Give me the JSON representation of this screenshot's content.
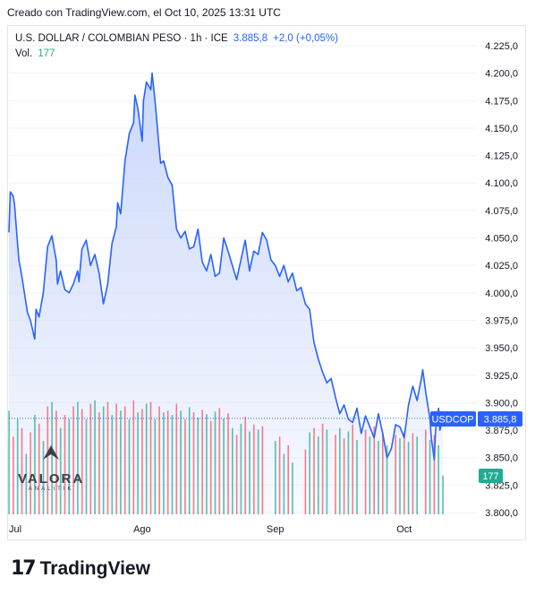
{
  "caption": "Creado con TradingView.com, el Oct 10, 2025 13:31 UTC",
  "legend": {
    "symbol": "U.S. DOLLAR / COLOMBIAN PESO · 1h · ICE",
    "price": "3.885,8",
    "change": "+2,0 (+0,05%)",
    "volume_label": "Vol.",
    "volume_value": "177"
  },
  "price_tag": {
    "symbol": "USDCOP",
    "value": "3.885,8"
  },
  "volume_tag": "177",
  "watermark": {
    "name": "VALORA",
    "sub": "ANALITIK"
  },
  "footer": {
    "logo": "17",
    "brand": "TradingView"
  },
  "colors": {
    "line": "#2962ff",
    "fill": "#c9d6fb",
    "vol_up": "#22ab94",
    "vol_down": "#f7525f",
    "tag": "#2962ff"
  },
  "chart_data": {
    "type": "area",
    "y_ticks": [
      "4.225,0",
      "4.200,0",
      "4.175,0",
      "4.150,0",
      "4.125,0",
      "4.100,0",
      "4.075,0",
      "4.050,0",
      "4.025,0",
      "4.000,0",
      "3.975,0",
      "3.950,0",
      "3.925,0",
      "3.900,0",
      "3.875,0",
      "3.850,0",
      "3.825,0",
      "3.800,0"
    ],
    "y_tick_values": [
      4225,
      4200,
      4175,
      4150,
      4125,
      4100,
      4075,
      4050,
      4025,
      4000,
      3975,
      3950,
      3925,
      3900,
      3875,
      3850,
      3825,
      3800
    ],
    "ylim": [
      3800,
      4235
    ],
    "x_ticks": [
      "Jul",
      "Ago",
      "Sep",
      "Oct"
    ],
    "x_tick_dates": [
      "2025-07-01",
      "2025-08-01",
      "2025-09-01",
      "2025-10-01"
    ],
    "xlim": [
      "2025-07-01",
      "2025-10-10"
    ],
    "last_price": 3885.8,
    "points": [
      [
        "2025-07-01",
        4055
      ],
      [
        "2025-07-01",
        4092
      ],
      [
        "2025-07-02",
        4088
      ],
      [
        "2025-07-02",
        4080
      ],
      [
        "2025-07-03",
        4045
      ],
      [
        "2025-07-03",
        4030
      ],
      [
        "2025-07-04",
        4015
      ],
      [
        "2025-07-05",
        3990
      ],
      [
        "2025-07-05",
        3982
      ],
      [
        "2025-07-06",
        3975
      ],
      [
        "2025-07-07",
        3958
      ],
      [
        "2025-07-07",
        3985
      ],
      [
        "2025-07-08",
        3978
      ],
      [
        "2025-07-09",
        4000
      ],
      [
        "2025-07-10",
        4042
      ],
      [
        "2025-07-11",
        4052
      ],
      [
        "2025-07-12",
        4030
      ],
      [
        "2025-07-12",
        4008
      ],
      [
        "2025-07-13",
        4020
      ],
      [
        "2025-07-14",
        4003
      ],
      [
        "2025-07-15",
        4000
      ],
      [
        "2025-07-16",
        4008
      ],
      [
        "2025-07-17",
        4020
      ],
      [
        "2025-07-17",
        4010
      ],
      [
        "2025-07-18",
        4040
      ],
      [
        "2025-07-19",
        4048
      ],
      [
        "2025-07-20",
        4025
      ],
      [
        "2025-07-21",
        4035
      ],
      [
        "2025-07-22",
        4018
      ],
      [
        "2025-07-23",
        3990
      ],
      [
        "2025-07-24",
        4008
      ],
      [
        "2025-07-25",
        4045
      ],
      [
        "2025-07-26",
        4060
      ],
      [
        "2025-07-26",
        4082
      ],
      [
        "2025-07-27",
        4072
      ],
      [
        "2025-07-28",
        4120
      ],
      [
        "2025-07-29",
        4145
      ],
      [
        "2025-07-30",
        4155
      ],
      [
        "2025-07-30",
        4180
      ],
      [
        "2025-07-31",
        4168
      ],
      [
        "2025-08-01",
        4138
      ],
      [
        "2025-08-01",
        4175
      ],
      [
        "2025-08-02",
        4192
      ],
      [
        "2025-08-03",
        4185
      ],
      [
        "2025-08-03",
        4200
      ],
      [
        "2025-08-04",
        4175
      ],
      [
        "2025-08-05",
        4130
      ],
      [
        "2025-08-05",
        4118
      ],
      [
        "2025-08-06",
        4120
      ],
      [
        "2025-08-07",
        4105
      ],
      [
        "2025-08-08",
        4098
      ],
      [
        "2025-08-09",
        4058
      ],
      [
        "2025-08-10",
        4050
      ],
      [
        "2025-08-11",
        4056
      ],
      [
        "2025-08-12",
        4040
      ],
      [
        "2025-08-13",
        4042
      ],
      [
        "2025-08-14",
        4058
      ],
      [
        "2025-08-15",
        4028
      ],
      [
        "2025-08-16",
        4020
      ],
      [
        "2025-08-17",
        4035
      ],
      [
        "2025-08-18",
        4015
      ],
      [
        "2025-08-19",
        4018
      ],
      [
        "2025-08-20",
        4050
      ],
      [
        "2025-08-21",
        4038
      ],
      [
        "2025-08-22",
        4025
      ],
      [
        "2025-08-23",
        4012
      ],
      [
        "2025-08-24",
        4030
      ],
      [
        "2025-08-25",
        4048
      ],
      [
        "2025-08-26",
        4020
      ],
      [
        "2025-08-27",
        4038
      ],
      [
        "2025-08-28",
        4035
      ],
      [
        "2025-08-29",
        4055
      ],
      [
        "2025-08-30",
        4048
      ],
      [
        "2025-08-31",
        4030
      ],
      [
        "2025-09-01",
        4025
      ],
      [
        "2025-09-02",
        4015
      ],
      [
        "2025-09-03",
        4025
      ],
      [
        "2025-09-04",
        4010
      ],
      [
        "2025-09-05",
        4018
      ],
      [
        "2025-09-06",
        4002
      ],
      [
        "2025-09-07",
        4005
      ],
      [
        "2025-09-08",
        3990
      ],
      [
        "2025-09-09",
        3985
      ],
      [
        "2025-09-10",
        3955
      ],
      [
        "2025-09-11",
        3940
      ],
      [
        "2025-09-12",
        3928
      ],
      [
        "2025-09-13",
        3918
      ],
      [
        "2025-09-14",
        3922
      ],
      [
        "2025-09-15",
        3905
      ],
      [
        "2025-09-16",
        3890
      ],
      [
        "2025-09-17",
        3898
      ],
      [
        "2025-09-18",
        3885
      ],
      [
        "2025-09-19",
        3882
      ],
      [
        "2025-09-20",
        3895
      ],
      [
        "2025-09-21",
        3872
      ],
      [
        "2025-09-22",
        3888
      ],
      [
        "2025-09-23",
        3878
      ],
      [
        "2025-09-24",
        3868
      ],
      [
        "2025-09-25",
        3890
      ],
      [
        "2025-09-26",
        3872
      ],
      [
        "2025-09-27",
        3850
      ],
      [
        "2025-09-28",
        3858
      ],
      [
        "2025-09-29",
        3880
      ],
      [
        "2025-09-30",
        3878
      ],
      [
        "2025-10-01",
        3868
      ],
      [
        "2025-10-02",
        3898
      ],
      [
        "2025-10-03",
        3915
      ],
      [
        "2025-10-04",
        3902
      ],
      [
        "2025-10-05",
        3922
      ],
      [
        "2025-10-05",
        3930
      ],
      [
        "2025-10-06",
        3910
      ],
      [
        "2025-10-07",
        3885
      ],
      [
        "2025-10-07",
        3868
      ],
      [
        "2025-10-08",
        3848
      ],
      [
        "2025-10-08",
        3875
      ],
      [
        "2025-10-09",
        3895
      ],
      [
        "2025-10-09",
        3875
      ],
      [
        "2025-10-10",
        3885.8
      ]
    ],
    "volume": [
      [
        "2025-07-01",
        120,
        1
      ],
      [
        "2025-07-02",
        90,
        0
      ],
      [
        "2025-07-03",
        110,
        1
      ],
      [
        "2025-07-04",
        100,
        0
      ],
      [
        "2025-07-05",
        70,
        1
      ],
      [
        "2025-07-06",
        95,
        0
      ],
      [
        "2025-07-07",
        115,
        1
      ],
      [
        "2025-07-08",
        105,
        0
      ],
      [
        "2025-07-09",
        85,
        1
      ],
      [
        "2025-07-10",
        125,
        0
      ],
      [
        "2025-07-11",
        130,
        1
      ],
      [
        "2025-07-12",
        120,
        0
      ],
      [
        "2025-07-13",
        100,
        1
      ],
      [
        "2025-07-14",
        115,
        0
      ],
      [
        "2025-07-15",
        110,
        1
      ],
      [
        "2025-07-16",
        125,
        0
      ],
      [
        "2025-07-17",
        130,
        1
      ],
      [
        "2025-07-18",
        122,
        0
      ],
      [
        "2025-07-19",
        110,
        1
      ],
      [
        "2025-07-20",
        128,
        0
      ],
      [
        "2025-07-21",
        132,
        1
      ],
      [
        "2025-07-22",
        118,
        0
      ],
      [
        "2025-07-23",
        125,
        1
      ],
      [
        "2025-07-24",
        130,
        0
      ],
      [
        "2025-07-25",
        115,
        1
      ],
      [
        "2025-07-26",
        128,
        0
      ],
      [
        "2025-07-27",
        120,
        1
      ],
      [
        "2025-07-28",
        125,
        0
      ],
      [
        "2025-07-29",
        110,
        1
      ],
      [
        "2025-07-30",
        132,
        0
      ],
      [
        "2025-07-31",
        118,
        1
      ],
      [
        "2025-08-01",
        122,
        0
      ],
      [
        "2025-08-02",
        128,
        1
      ],
      [
        "2025-08-03",
        130,
        0
      ],
      [
        "2025-08-04",
        110,
        1
      ],
      [
        "2025-08-05",
        125,
        0
      ],
      [
        "2025-08-06",
        118,
        1
      ],
      [
        "2025-08-07",
        120,
        0
      ],
      [
        "2025-08-08",
        115,
        1
      ],
      [
        "2025-08-09",
        128,
        0
      ],
      [
        "2025-08-10",
        120,
        1
      ],
      [
        "2025-08-11",
        110,
        0
      ],
      [
        "2025-08-12",
        124,
        1
      ],
      [
        "2025-08-13",
        118,
        0
      ],
      [
        "2025-08-14",
        112,
        1
      ],
      [
        "2025-08-15",
        121,
        0
      ],
      [
        "2025-08-16",
        116,
        1
      ],
      [
        "2025-08-17",
        108,
        0
      ],
      [
        "2025-08-18",
        119,
        1
      ],
      [
        "2025-08-19",
        123,
        0
      ],
      [
        "2025-08-20",
        111,
        1
      ],
      [
        "2025-08-21",
        117,
        0
      ],
      [
        "2025-08-22",
        100,
        1
      ],
      [
        "2025-08-23",
        92,
        0
      ],
      [
        "2025-08-24",
        105,
        1
      ],
      [
        "2025-08-25",
        113,
        0
      ],
      [
        "2025-08-26",
        96,
        1
      ],
      [
        "2025-08-27",
        104,
        0
      ],
      [
        "2025-08-28",
        98,
        1
      ],
      [
        "2025-08-29",
        102,
        0
      ],
      [
        "2025-09-01",
        85,
        1
      ],
      [
        "2025-09-02",
        90,
        0
      ],
      [
        "2025-09-03",
        70,
        1
      ],
      [
        "2025-09-04",
        80,
        0
      ],
      [
        "2025-09-05",
        60,
        1
      ],
      [
        "2025-09-08",
        75,
        0
      ],
      [
        "2025-09-09",
        95,
        1
      ],
      [
        "2025-09-10",
        100,
        0
      ],
      [
        "2025-09-11",
        90,
        1
      ],
      [
        "2025-09-12",
        105,
        0
      ],
      [
        "2025-09-13",
        98,
        1
      ],
      [
        "2025-09-15",
        92,
        0
      ],
      [
        "2025-09-16",
        100,
        1
      ],
      [
        "2025-09-17",
        88,
        0
      ],
      [
        "2025-09-18",
        96,
        1
      ],
      [
        "2025-09-19",
        104,
        0
      ],
      [
        "2025-09-20",
        86,
        1
      ],
      [
        "2025-09-22",
        98,
        0
      ],
      [
        "2025-09-23",
        90,
        1
      ],
      [
        "2025-09-24",
        102,
        0
      ],
      [
        "2025-09-25",
        85,
        1
      ],
      [
        "2025-09-26",
        95,
        0
      ],
      [
        "2025-09-27",
        80,
        1
      ],
      [
        "2025-09-29",
        92,
        0
      ],
      [
        "2025-09-30",
        88,
        1
      ],
      [
        "2025-10-01",
        96,
        0
      ],
      [
        "2025-10-02",
        84,
        1
      ],
      [
        "2025-10-03",
        94,
        0
      ],
      [
        "2025-10-04",
        90,
        1
      ],
      [
        "2025-10-06",
        98,
        0
      ],
      [
        "2025-10-07",
        86,
        1
      ],
      [
        "2025-10-08",
        92,
        0
      ],
      [
        "2025-10-09",
        80,
        1
      ],
      [
        "2025-10-10",
        45,
        1
      ]
    ]
  }
}
